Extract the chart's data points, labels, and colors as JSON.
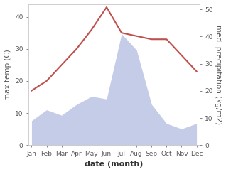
{
  "months": [
    "Jan",
    "Feb",
    "Mar",
    "Apr",
    "May",
    "Jun",
    "Jul",
    "Aug",
    "Sep",
    "Oct",
    "Nov",
    "Dec"
  ],
  "temperature": [
    17,
    20,
    25,
    30,
    36,
    43,
    35,
    34,
    33,
    33,
    28,
    23
  ],
  "precipitation": [
    9,
    13,
    11,
    15,
    18,
    17,
    41,
    35,
    15,
    8,
    6,
    8
  ],
  "temp_color": "#c0504d",
  "precip_fill_color": "#c5cce8",
  "precip_edge_color": "#aab4d8",
  "temp_ylim": [
    0,
    44
  ],
  "precip_ylim": [
    0,
    52
  ],
  "temp_yticks": [
    0,
    10,
    20,
    30,
    40
  ],
  "precip_yticks": [
    0,
    10,
    20,
    30,
    40,
    50
  ],
  "ylabel_left": "max temp (C)",
  "ylabel_right": "med. precipitation (kg/m2)",
  "xlabel": "date (month)",
  "bg_color": "#ffffff",
  "spine_color": "#cccccc",
  "label_color": "#555555",
  "tick_labelsize": 6.5,
  "ylabel_fontsize": 7.5,
  "xlabel_fontsize": 8
}
